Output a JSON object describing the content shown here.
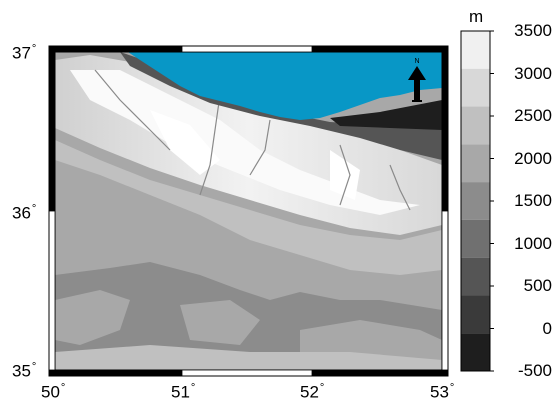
{
  "map": {
    "x_ticks": [
      {
        "value": "50",
        "suffix": "°"
      },
      {
        "value": "51",
        "suffix": "°"
      },
      {
        "value": "52",
        "suffix": "°"
      },
      {
        "value": "53",
        "suffix": "°"
      }
    ],
    "y_ticks": [
      {
        "value": "37",
        "suffix": "°"
      },
      {
        "value": "36",
        "suffix": "°"
      },
      {
        "value": "35",
        "suffix": "°"
      }
    ],
    "sea_color": "#0897c6",
    "north_arrow_label": "N",
    "north_arrow_icon": "north-arrow-icon"
  },
  "colorbar": {
    "unit": "m",
    "labels": [
      "3500",
      "3000",
      "2500",
      "2000",
      "1500",
      "1000",
      "500",
      "0",
      "-500"
    ],
    "colors": [
      "#f0f0f0",
      "#d8d8d8",
      "#c0c0c0",
      "#a8a8a8",
      "#8c8c8c",
      "#707070",
      "#555555",
      "#3a3a3a",
      "#1e1e1e"
    ]
  }
}
